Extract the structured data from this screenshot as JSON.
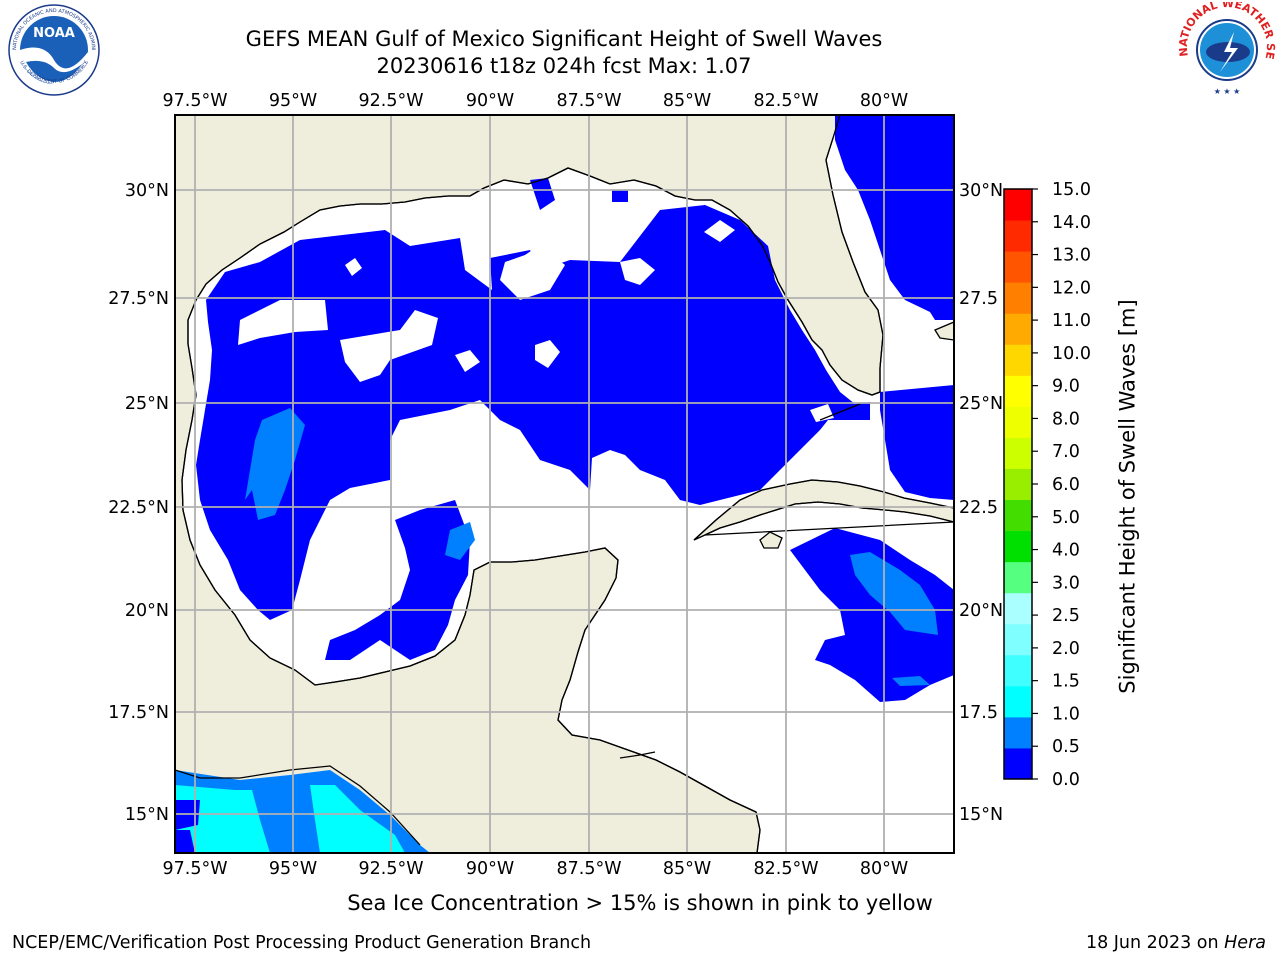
{
  "header": {
    "title": "GEFS MEAN Gulf of Mexico Significant Height of Swell Waves",
    "subtitle": "20230616 t18z 024h fcst   Max: 1.07"
  },
  "logos": {
    "left": {
      "name": "NOAA",
      "ring_text": "NATIONAL OCEANIC AND ATMOSPHERIC ADMINISTRATION",
      "bottom_text": "U.S. DEPARTMENT OF COMMERCE"
    },
    "right": {
      "name": "NATIONAL WEATHER SERVICE"
    }
  },
  "map": {
    "lon_ticks": [
      "97.5°W",
      "95°W",
      "92.5°W",
      "90°W",
      "87.5°W",
      "85°W",
      "82.5°W",
      "80°W"
    ],
    "lat_ticks_left": [
      "30°N",
      "27.5°N",
      "25°N",
      "22.5°N",
      "20°N",
      "17.5°N",
      "15°N"
    ],
    "lat_ticks_right": [
      "30°N",
      "27.5",
      "25°N",
      "22.5",
      "20°N",
      "17.5",
      "15°N"
    ],
    "colors": {
      "land": "#efeddb",
      "ocean_zero": "#ffffff",
      "grid": "#b0b0b0",
      "coast": "#000000"
    }
  },
  "colorbar": {
    "label": "Significant Height of Swell Waves [m]",
    "ticks": [
      "0.0",
      "0.5",
      "1.0",
      "1.5",
      "2.0",
      "2.5",
      "3.0",
      "4.0",
      "5.0",
      "6.0",
      "7.0",
      "8.0",
      "9.0",
      "10.0",
      "11.0",
      "12.0",
      "13.0",
      "14.0",
      "15.0"
    ],
    "colors": [
      "#0000ff",
      "#0080ff",
      "#00ffff",
      "#3fffff",
      "#7fffff",
      "#aaffff",
      "#55ff7f",
      "#00e000",
      "#44dd00",
      "#99ee00",
      "#ccff00",
      "#eeff00",
      "#ffff00",
      "#ffd700",
      "#ffaa00",
      "#ff8000",
      "#ff5500",
      "#ff2a00",
      "#ff0000"
    ]
  },
  "caption": "Sea Ice Concentration > 15% is shown in pink to yellow",
  "footer": {
    "left": "NCEP/EMC/Verification Post Processing Product Generation Branch",
    "date": "18 Jun 2023 on ",
    "host": "Hera"
  }
}
